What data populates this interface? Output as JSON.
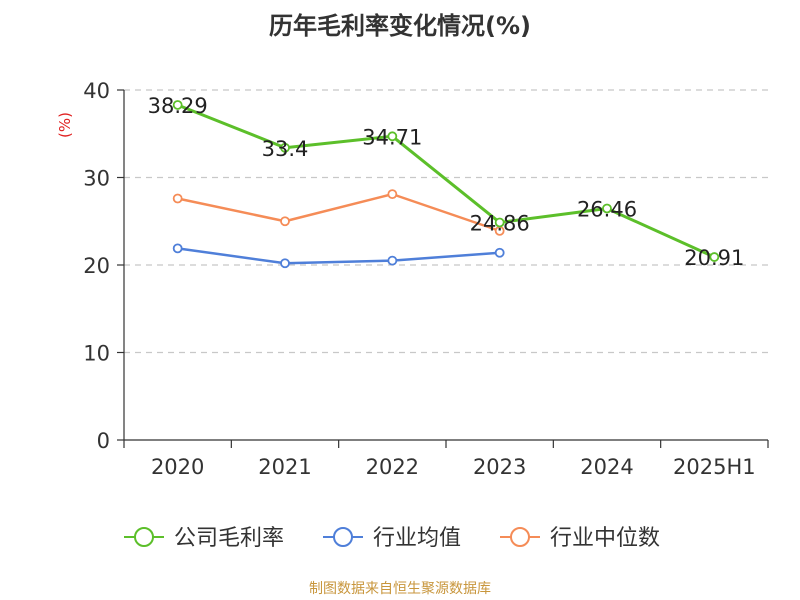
{
  "chart_data": {
    "type": "line",
    "title": "历年毛利率变化情况(%)",
    "ylabel": "(%)",
    "xlabel": "",
    "categories": [
      "2020",
      "2021",
      "2022",
      "2023",
      "2024",
      "2025H1"
    ],
    "ylim": [
      0,
      40
    ],
    "yticks": [
      "0",
      "10",
      "20",
      "30",
      "40"
    ],
    "grid": true,
    "legend_position": "bottom",
    "series": [
      {
        "name": "公司毛利率",
        "color": "#5cbf2a",
        "values": [
          38.29,
          33.4,
          34.71,
          24.86,
          26.46,
          20.91
        ],
        "labels": [
          "38.29",
          "33.4",
          "34.71",
          "24.86",
          "26.46",
          "20.91"
        ]
      },
      {
        "name": "行业均值",
        "color": "#4f7fd9",
        "values": [
          21.9,
          20.2,
          20.5,
          21.4,
          null,
          null
        ]
      },
      {
        "name": "行业中位数",
        "color": "#f58c57",
        "values": [
          27.6,
          25.0,
          28.1,
          23.9,
          null,
          null
        ]
      }
    ]
  },
  "source_text": "制图数据来自恒生聚源数据库"
}
